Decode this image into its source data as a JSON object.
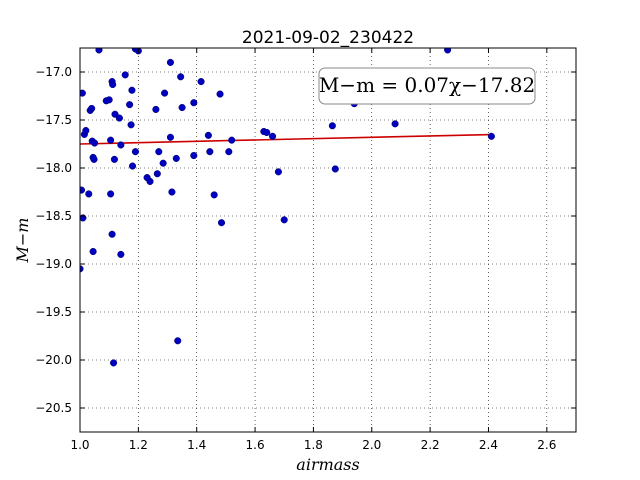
{
  "chart_data": {
    "type": "scatter",
    "title": "2021-09-02_230422",
    "xlabel": "airmass",
    "ylabel": "M−m",
    "xlim": [
      1.0,
      2.7
    ],
    "ylim": [
      -20.75,
      -16.75
    ],
    "y_inverted": true,
    "grid": true,
    "xticks": [
      1.0,
      1.2,
      1.4,
      1.6,
      1.8,
      2.0,
      2.2,
      2.4,
      2.6
    ],
    "xtick_labels": [
      "1.0",
      "1.2",
      "1.4",
      "1.6",
      "1.8",
      "2.0",
      "2.2",
      "2.4",
      "2.6"
    ],
    "yticks": [
      -17.0,
      -17.5,
      -18.0,
      -18.5,
      -19.0,
      -19.5,
      -20.0,
      -20.5
    ],
    "ytick_labels": [
      "−17.0",
      "−17.5",
      "−18.0",
      "−18.5",
      "−19.0",
      "−19.5",
      "−20.0",
      "−20.5"
    ],
    "point_color": "#0000bf",
    "fit_color": "#cc0000",
    "annotation": "M−m = 0.07χ−17.82",
    "fit": {
      "slope": 0.07,
      "intercept": -17.82,
      "x_range": [
        1.0,
        2.41
      ]
    },
    "points": [
      [
        1.0,
        -19.05
      ],
      [
        1.005,
        -18.23
      ],
      [
        1.008,
        -17.22
      ],
      [
        1.01,
        -18.52
      ],
      [
        1.015,
        -17.65
      ],
      [
        1.02,
        -17.61
      ],
      [
        1.03,
        -18.27
      ],
      [
        1.035,
        -17.4
      ],
      [
        1.04,
        -17.38
      ],
      [
        1.042,
        -17.72
      ],
      [
        1.045,
        -17.89
      ],
      [
        1.048,
        -17.91
      ],
      [
        1.05,
        -17.74
      ],
      [
        1.045,
        -18.87
      ],
      [
        1.065,
        -16.77
      ],
      [
        1.09,
        -17.3
      ],
      [
        1.1,
        -17.29
      ],
      [
        1.105,
        -18.27
      ],
      [
        1.105,
        -17.71
      ],
      [
        1.11,
        -17.1
      ],
      [
        1.112,
        -17.13
      ],
      [
        1.11,
        -18.69
      ],
      [
        1.115,
        -20.03
      ],
      [
        1.118,
        -17.91
      ],
      [
        1.12,
        -17.44
      ],
      [
        1.135,
        -17.48
      ],
      [
        1.14,
        -17.76
      ],
      [
        1.14,
        -18.9
      ],
      [
        1.155,
        -17.03
      ],
      [
        1.17,
        -17.34
      ],
      [
        1.175,
        -17.55
      ],
      [
        1.178,
        -17.19
      ],
      [
        1.18,
        -17.98
      ],
      [
        1.19,
        -17.83
      ],
      [
        1.19,
        -16.76
      ],
      [
        1.2,
        -16.78
      ],
      [
        1.23,
        -18.1
      ],
      [
        1.24,
        -18.14
      ],
      [
        1.26,
        -17.39
      ],
      [
        1.265,
        -18.06
      ],
      [
        1.27,
        -17.83
      ],
      [
        1.285,
        -17.95
      ],
      [
        1.29,
        -17.22
      ],
      [
        1.31,
        -16.9
      ],
      [
        1.31,
        -17.68
      ],
      [
        1.315,
        -18.25
      ],
      [
        1.33,
        -17.9
      ],
      [
        1.335,
        -19.8
      ],
      [
        1.345,
        -17.05
      ],
      [
        1.35,
        -17.37
      ],
      [
        1.39,
        -17.32
      ],
      [
        1.39,
        -17.87
      ],
      [
        1.415,
        -17.1
      ],
      [
        1.44,
        -17.66
      ],
      [
        1.445,
        -17.83
      ],
      [
        1.46,
        -18.28
      ],
      [
        1.48,
        -17.23
      ],
      [
        1.485,
        -18.57
      ],
      [
        1.51,
        -17.83
      ],
      [
        1.52,
        -17.71
      ],
      [
        1.63,
        -17.62
      ],
      [
        1.64,
        -17.63
      ],
      [
        1.66,
        -17.67
      ],
      [
        1.68,
        -18.04
      ],
      [
        1.7,
        -18.54
      ],
      [
        1.865,
        -17.56
      ],
      [
        1.875,
        -18.01
      ],
      [
        1.94,
        -17.33
      ],
      [
        2.08,
        -17.54
      ],
      [
        2.26,
        -16.77
      ],
      [
        2.41,
        -17.67
      ]
    ]
  }
}
